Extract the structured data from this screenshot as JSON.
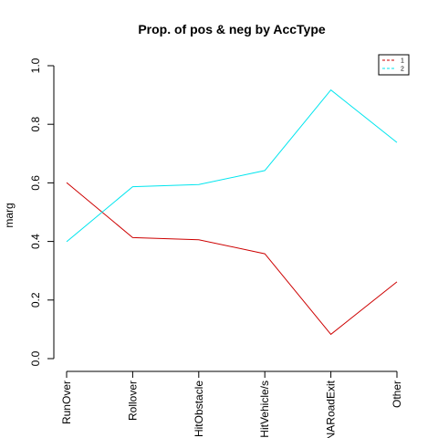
{
  "chart_data": {
    "type": "line",
    "title": "Prop. of pos & neg by AccType",
    "xlabel": "",
    "ylabel": "marg",
    "categories": [
      "RunOver",
      "Rollover",
      "HitObstacle",
      "HitVehicle/s",
      "NARoadExit",
      "Other"
    ],
    "ylim": [
      0,
      1
    ],
    "yticks": [
      "0.0",
      "0.2",
      "0.4",
      "0.6",
      "0.8",
      "1.0"
    ],
    "grid": false,
    "legend_position": "top-right",
    "series": [
      {
        "name": "1",
        "color": "#cd0000",
        "line_style": "dashed-in-legend",
        "values": [
          0.601,
          0.413,
          0.406,
          0.358,
          0.083,
          0.262
        ]
      },
      {
        "name": "2",
        "color": "#00e5ee",
        "line_style": "dashed-in-legend",
        "values": [
          0.399,
          0.587,
          0.594,
          0.642,
          0.917,
          0.738
        ]
      }
    ]
  }
}
